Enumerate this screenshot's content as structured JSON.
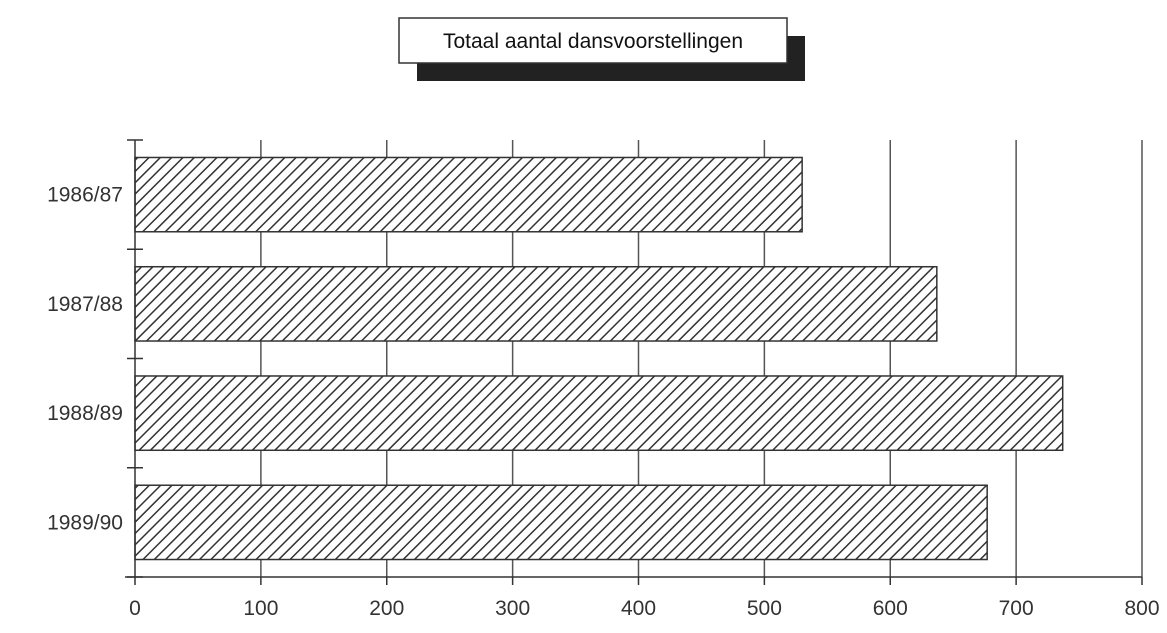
{
  "chart_data": {
    "type": "bar",
    "orientation": "horizontal",
    "title": "Totaal aantal dansvoorstellingen",
    "categories": [
      "1986/87",
      "1987/88",
      "1988/89",
      "1989/90"
    ],
    "values": [
      530,
      637,
      737,
      677
    ],
    "xlabel": "",
    "ylabel": "",
    "xlim": [
      0,
      800
    ],
    "x_ticks": [
      "0",
      "100",
      "200",
      "300",
      "400",
      "500",
      "600",
      "700",
      "800"
    ],
    "grid": "vertical",
    "legend": "none",
    "bar_fill": "diagonal-hatch",
    "colors": {
      "hatch": "#333333",
      "grid": "#555555",
      "axis": "#333333",
      "title_shadow": "#222222"
    }
  }
}
